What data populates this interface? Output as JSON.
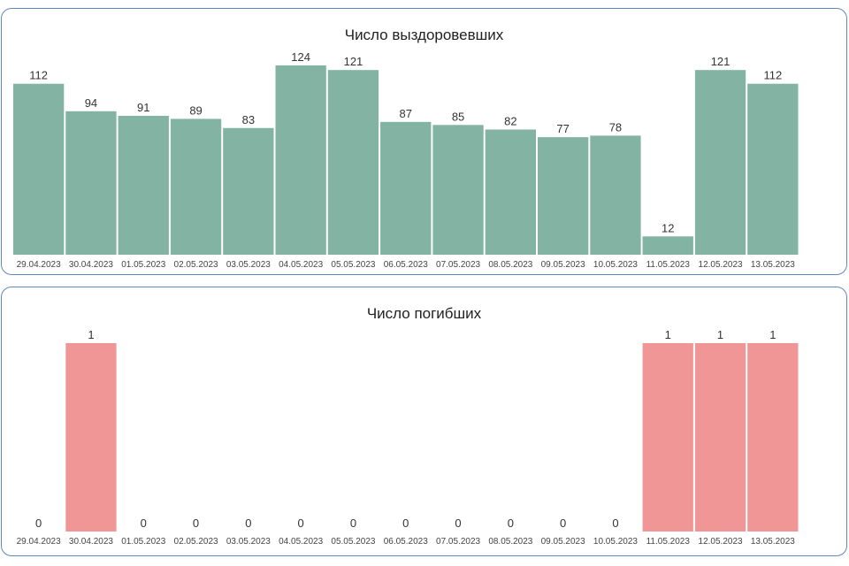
{
  "chart_data": [
    {
      "type": "bar",
      "title": "Число выздоровевших",
      "xlabel": "",
      "ylabel": "",
      "ylim": [
        0,
        124
      ],
      "grid": false,
      "categories": [
        "29.04.2023",
        "30.04.2023",
        "01.05.2023",
        "02.05.2023",
        "03.05.2023",
        "04.05.2023",
        "05.05.2023",
        "06.05.2023",
        "07.05.2023",
        "08.05.2023",
        "09.05.2023",
        "10.05.2023",
        "11.05.2023",
        "12.05.2023",
        "13.05.2023"
      ],
      "values": [
        112,
        94,
        91,
        89,
        83,
        124,
        121,
        87,
        85,
        82,
        77,
        78,
        12,
        121,
        112
      ],
      "value_labels": [
        "112",
        "94",
        "91",
        "89",
        "83",
        "124",
        "121",
        "87",
        "85",
        "82",
        "77",
        "78",
        "12",
        "121",
        "112"
      ],
      "color": "#82b3a3"
    },
    {
      "type": "bar",
      "title": "Число погибших",
      "xlabel": "",
      "ylabel": "",
      "ylim": [
        0,
        1
      ],
      "grid": false,
      "categories": [
        "29.04.2023",
        "30.04.2023",
        "01.05.2023",
        "02.05.2023",
        "03.05.2023",
        "04.05.2023",
        "05.05.2023",
        "06.05.2023",
        "07.05.2023",
        "08.05.2023",
        "09.05.2023",
        "10.05.2023",
        "11.05.2023",
        "12.05.2023",
        "13.05.2023"
      ],
      "values": [
        0,
        1,
        0,
        0,
        0,
        0,
        0,
        0,
        0,
        0,
        0,
        0,
        1,
        1,
        1
      ],
      "value_labels": [
        "0",
        "1",
        "0",
        "0",
        "0",
        "0",
        "0",
        "0",
        "0",
        "0",
        "0",
        "0",
        "1",
        "1",
        "1"
      ],
      "color": "#f09696"
    }
  ]
}
